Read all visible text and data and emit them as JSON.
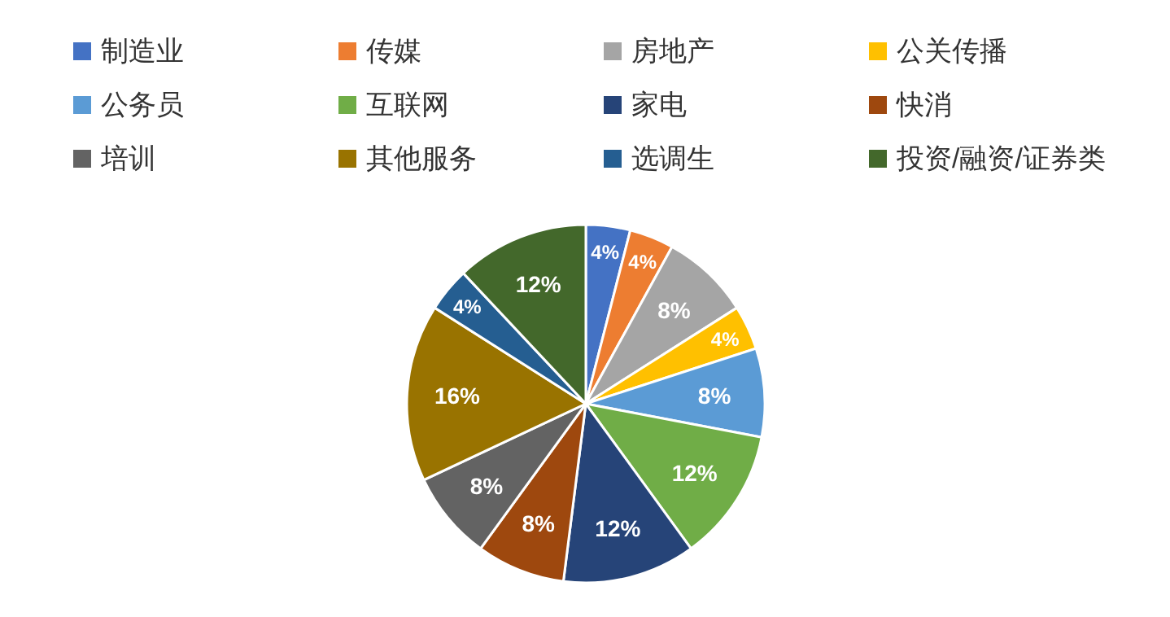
{
  "chart_data": {
    "type": "pie",
    "categories": [
      "制造业",
      "传媒",
      "房地产",
      "公关传播",
      "公务员",
      "互联网",
      "家电",
      "快消",
      "培训",
      "其他服务",
      "选调生",
      "投资/融资/证券类"
    ],
    "values": [
      4,
      4,
      8,
      4,
      8,
      12,
      12,
      8,
      8,
      16,
      4,
      12
    ],
    "colors": [
      "#4472c4",
      "#ed7d31",
      "#a5a5a5",
      "#ffc000",
      "#5b9bd5",
      "#70ad47",
      "#264478",
      "#9e480e",
      "#636363",
      "#997300",
      "#255e91",
      "#43682b"
    ],
    "value_labels": [
      "4%",
      "4%",
      "8%",
      "4%",
      "8%",
      "12%",
      "12%",
      "8%",
      "8%",
      "16%",
      "4%",
      "12%"
    ],
    "legend": "top"
  }
}
